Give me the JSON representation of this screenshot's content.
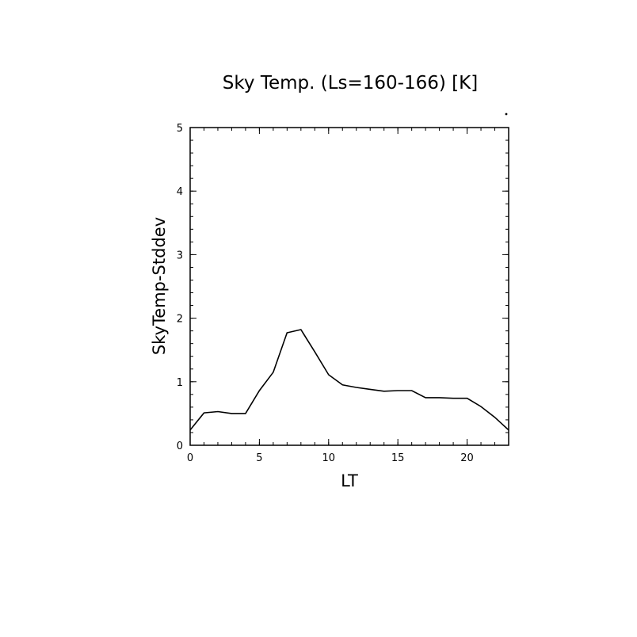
{
  "chart_data": {
    "type": "line",
    "title": "Sky Temp. (Ls=160-166) [K]",
    "xlabel": "LT",
    "ylabel": "SkyTemp-Stddev",
    "xlim": [
      0,
      23
    ],
    "ylim": [
      0,
      5
    ],
    "xticks": [
      0,
      5,
      10,
      15,
      20
    ],
    "yticks": [
      0,
      1,
      2,
      3,
      4,
      5
    ],
    "x_tick_labels": [
      "0",
      "5",
      "10",
      "15",
      "20"
    ],
    "y_tick_labels": [
      "0",
      "1",
      "2",
      "3",
      "4",
      "5"
    ],
    "grid": false,
    "series": [
      {
        "x": [
          0,
          1,
          2,
          3,
          4,
          5,
          6,
          7,
          8,
          9,
          10,
          11,
          12,
          13,
          14,
          15,
          16,
          17,
          18,
          19,
          20,
          21,
          22,
          23
        ],
        "values": [
          0.24,
          0.51,
          0.53,
          0.5,
          0.5,
          0.86,
          1.15,
          1.77,
          1.82,
          1.47,
          1.11,
          0.95,
          0.91,
          0.88,
          0.85,
          0.86,
          0.86,
          0.75,
          0.75,
          0.74,
          0.74,
          0.61,
          0.44,
          0.24
        ],
        "color": "#000000"
      }
    ]
  }
}
